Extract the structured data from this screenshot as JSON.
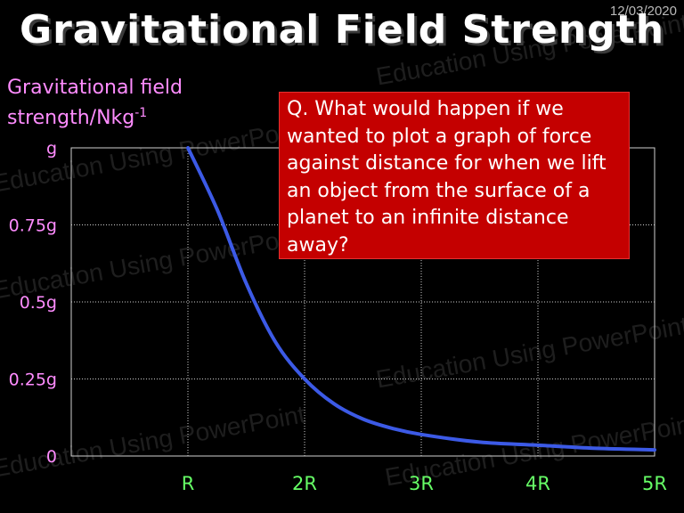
{
  "slide": {
    "date": "12/03/2020",
    "title": "Gravitational Field Strength",
    "question": "Q. What would happen if we wanted to plot a graph of force against distance for when we lift an object from the surface of a planet to an infinite distance away?",
    "watermark_text": "Education Using PowerPoint"
  },
  "chart_data": {
    "type": "line",
    "title": "",
    "ylabel_line1": "Gravitational field",
    "ylabel_line2": "strength/Nkg",
    "ylabel_exponent": "-1",
    "xlabel": "",
    "x_ticks": [
      {
        "label": "R",
        "value": 1
      },
      {
        "label": "2R",
        "value": 2
      },
      {
        "label": "3R",
        "value": 3
      },
      {
        "label": "4R",
        "value": 4
      },
      {
        "label": "5R",
        "value": 5
      }
    ],
    "y_ticks": [
      {
        "label": "g",
        "value": 1.0
      },
      {
        "label": "0.75g",
        "value": 0.75
      },
      {
        "label": "0.5g",
        "value": 0.5
      },
      {
        "label": "0.25g",
        "value": 0.25
      },
      {
        "label": "0",
        "value": 0
      }
    ],
    "xlim": [
      0,
      5
    ],
    "ylim": [
      0,
      1
    ],
    "grid": true,
    "series": [
      {
        "x": [
          1,
          1.25,
          1.5,
          1.75,
          2,
          2.25,
          2.5,
          2.75,
          3,
          3.5,
          4,
          4.5,
          5
        ],
        "y": [
          1.0,
          0.8,
          0.56,
          0.37,
          0.25,
          0.17,
          0.12,
          0.09,
          0.07,
          0.045,
          0.035,
          0.025,
          0.02
        ]
      }
    ],
    "colors": {
      "line": "#3c5ae6",
      "grid": "#cfcfcf",
      "axis_text_y": "#ff8cff",
      "axis_text_x": "#66ff66",
      "question_bg": "#c40000"
    }
  }
}
